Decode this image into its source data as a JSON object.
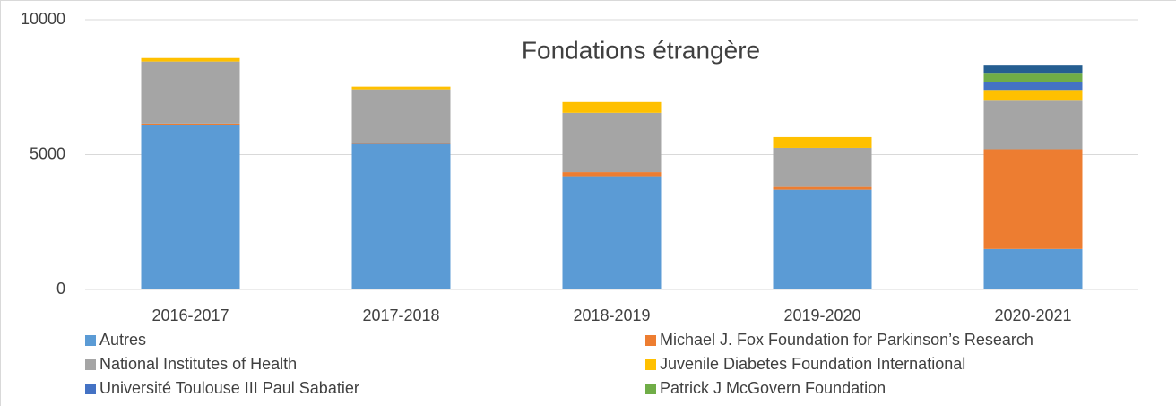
{
  "chart_data": {
    "type": "stacked_bar",
    "title": "Fondations étrangère",
    "categories": [
      "2016-2017",
      "2017-2018",
      "2018-2019",
      "2019-2020",
      "2020-2021"
    ],
    "series": [
      {
        "name": "Autres",
        "color": "#5b9bd5",
        "values": [
          6100,
          5400,
          4200,
          3700,
          1500
        ]
      },
      {
        "name": "Michael J. Fox Foundation for Parkinson’s Research",
        "color": "#ed7d31",
        "values": [
          50,
          20,
          150,
          100,
          3700
        ]
      },
      {
        "name": "National Institutes of Health",
        "color": "#a5a5a5",
        "values": [
          2300,
          2000,
          2200,
          1450,
          1800
        ]
      },
      {
        "name": "Juvenile Diabetes Foundation International",
        "color": "#ffc000",
        "values": [
          130,
          100,
          400,
          400,
          400
        ]
      },
      {
        "name": "Université Toulouse III Paul Sabatier",
        "color": "#4472c4",
        "values": [
          0,
          0,
          0,
          0,
          300
        ]
      },
      {
        "name": "Patrick J McGovern Foundation",
        "color": "#70ad47",
        "values": [
          0,
          0,
          0,
          0,
          300
        ]
      },
      {
        "name": null,
        "color": "#255e91",
        "values": [
          0,
          0,
          0,
          0,
          300
        ]
      }
    ],
    "ylim": [
      0,
      10000
    ],
    "yticks": [
      0,
      5000,
      10000
    ],
    "grid": true
  }
}
